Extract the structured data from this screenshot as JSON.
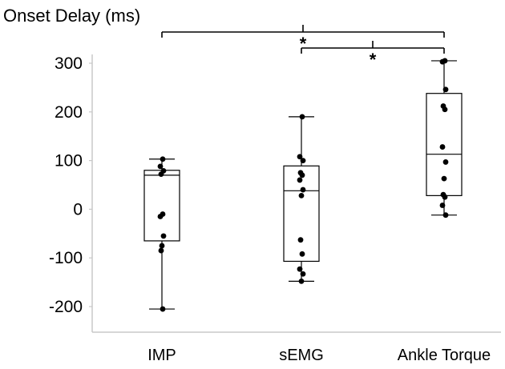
{
  "chart_data": {
    "type": "boxplot",
    "title": "Onset Delay (ms)",
    "xlabel": "",
    "ylabel": "",
    "categories": [
      "IMP",
      "sEMG",
      "Ankle Torque"
    ],
    "ylim": [
      -255,
      305
    ],
    "yticks": [
      -200,
      -100,
      0,
      100,
      200,
      300
    ],
    "grid": false,
    "boxes": [
      {
        "category": "IMP",
        "min": -205,
        "q1": -65,
        "median": 70,
        "q3": 80,
        "max": 103,
        "points": [
          103,
          88,
          79,
          72,
          -10,
          -15,
          -55,
          -75,
          -85,
          -205
        ]
      },
      {
        "category": "sEMG",
        "min": -148,
        "q1": -107,
        "median": 38,
        "q3": 89,
        "max": 190,
        "points": [
          190,
          108,
          100,
          75,
          70,
          60,
          40,
          28,
          -63,
          -92,
          -123,
          -133,
          -148
        ]
      },
      {
        "category": "Ankle Torque",
        "min": -12,
        "q1": 28,
        "median": 113,
        "q3": 238,
        "max": 305,
        "points": [
          305,
          303,
          246,
          212,
          205,
          128,
          97,
          63,
          30,
          25,
          8,
          -12
        ]
      }
    ],
    "significance": [
      {
        "from": "IMP",
        "to": "Ankle Torque",
        "label": "*"
      },
      {
        "from": "sEMG",
        "to": "Ankle Torque",
        "label": "*"
      }
    ]
  }
}
